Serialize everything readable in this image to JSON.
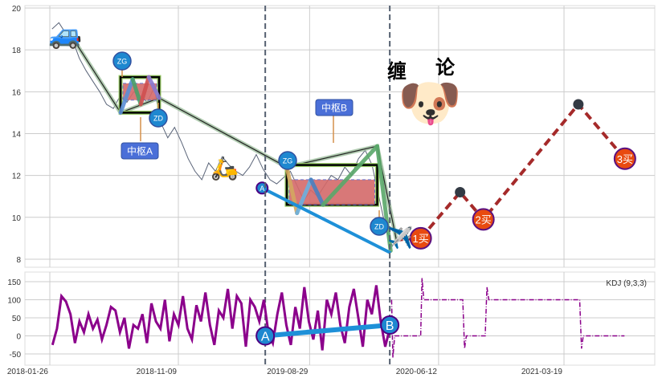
{
  "chart_data": [
    {
      "type": "line",
      "panel": "price",
      "ylim": [
        7.5,
        20.2
      ],
      "yticks": [
        "8",
        "10",
        "12",
        "14",
        "16",
        "18",
        "20"
      ],
      "grid": true,
      "price": {
        "start": "2018-01-31",
        "end": "2020-03-01",
        "values": [
          19.0,
          19.3,
          18.8,
          18.5,
          17.6,
          17.0,
          16.5,
          16.0,
          15.4,
          15.2,
          15.8,
          15.5,
          16.0,
          15.8,
          15.5,
          16.2,
          14.5,
          13.8,
          14.3,
          13.6,
          12.8,
          12.2,
          11.8,
          12.6,
          12.2,
          12.9,
          12.5,
          12.2,
          12.0,
          12.4,
          13.0,
          12.3,
          11.8,
          11.6,
          11.9,
          12.2,
          11.5,
          10.8,
          11.3,
          11.0,
          11.5,
          12.0,
          11.8,
          12.4,
          12.0,
          12.8,
          13.2,
          12.5,
          11.0,
          9.5,
          8.6
        ]
      },
      "trend_line": [
        [
          "2018-03-26",
          18.3
        ],
        [
          "2018-07-03",
          15.0
        ],
        [
          "2018-09-27",
          15.7
        ],
        [
          "2019-07-09",
          12.4
        ],
        [
          "2020-01-27",
          13.4
        ],
        [
          "2020-03-10",
          8.9
        ]
      ],
      "zhongshu_A": {
        "label": "中枢A",
        "start": "2018-07-03",
        "end": "2018-09-27",
        "low": 15.0,
        "high": 16.7,
        "band": [
          15.6,
          16.4
        ],
        "zigzag": [
          [
            "2018-07-03",
            15.0
          ],
          [
            "2018-07-30",
            16.6
          ],
          [
            "2018-08-17",
            15.4
          ],
          [
            "2018-09-04",
            16.7
          ],
          [
            "2018-09-27",
            15.7
          ]
        ],
        "zg_label": "ZG",
        "zd_label": "ZD"
      },
      "zhongshu_B": {
        "label": "中枢B",
        "start": "2019-07-09",
        "end": "2020-01-27",
        "low": 10.6,
        "high": 12.5,
        "band": [
          10.6,
          11.8
        ],
        "zigzag": [
          [
            "2019-07-09",
            12.4
          ],
          [
            "2019-08-01",
            10.2
          ],
          [
            "2019-09-01",
            11.8
          ],
          [
            "2019-09-28",
            10.6
          ],
          [
            "2020-01-27",
            13.4
          ],
          [
            "2020-02-26",
            8.4
          ]
        ],
        "zg_label": "ZG",
        "zd_label": "ZD"
      },
      "divergence_line": {
        "label": "A",
        "from": [
          "2019-05-15",
          11.4
        ],
        "to": [
          "2020-02-26",
          8.3
        ]
      },
      "forecast": {
        "points": [
          [
            "2020-05-03",
            9.0,
            "1买"
          ],
          [
            "2020-07-30",
            11.2,
            ""
          ],
          [
            "2020-09-20",
            9.9,
            "2买"
          ],
          [
            "2021-04-20",
            15.4,
            ""
          ],
          [
            "2021-08-02",
            12.8,
            "3买"
          ]
        ],
        "color": "#a52a2a"
      },
      "vlines": [
        "2019-05-22",
        "2020-02-24"
      ],
      "logo_text": [
        "缠",
        "论"
      ]
    },
    {
      "type": "line",
      "panel": "kdj",
      "legend": "KDJ (9,3,3)",
      "ylim": [
        -65,
        170
      ],
      "yticks": [
        "-50",
        "0",
        "50",
        "100",
        "150"
      ],
      "xticks": [
        [
          "2018-01-26",
          "2018-01-26"
        ],
        [
          "2018-11-09",
          "2018-11-09"
        ],
        [
          "2019-08-29",
          "2019-08-29"
        ],
        [
          "2020-06-12",
          "2020-06-12"
        ],
        [
          "2021-03-19",
          "2021-03-19"
        ]
      ],
      "kdj": {
        "start": "2018-02-01",
        "end": "2020-02-24",
        "color": "#8b008b",
        "values": [
          -25,
          20,
          110,
          95,
          60,
          -20,
          40,
          10,
          60,
          20,
          45,
          -10,
          30,
          80,
          70,
          10,
          50,
          -35,
          30,
          20,
          60,
          -20,
          90,
          40,
          20,
          100,
          -15,
          60,
          30,
          110,
          20,
          -10,
          85,
          40,
          120,
          30,
          -25,
          70,
          50,
          130,
          20,
          110,
          90,
          -30,
          100,
          80,
          40,
          100,
          10,
          -20,
          60,
          120,
          30,
          -25,
          80,
          20,
          135,
          40,
          -10,
          70,
          -40,
          100,
          60,
          120,
          30,
          -20,
          80,
          130,
          50,
          -30,
          100,
          60,
          140,
          40,
          -30,
          20
        ]
      },
      "kdj_forecast": [
        [
          "2020-02-28",
          100
        ],
        [
          "2020-03-02",
          -60
        ],
        [
          "2020-03-06",
          0
        ],
        [
          "2020-05-03",
          0
        ],
        [
          "2020-05-06",
          160
        ],
        [
          "2020-05-10",
          100
        ],
        [
          "2020-08-05",
          100
        ],
        [
          "2020-08-09",
          -35
        ],
        [
          "2020-08-13",
          0
        ],
        [
          "2020-09-24",
          0
        ],
        [
          "2020-09-28",
          135
        ],
        [
          "2020-10-02",
          100
        ],
        [
          "2021-04-23",
          100
        ],
        [
          "2021-04-27",
          -35
        ],
        [
          "2021-05-01",
          0
        ],
        [
          "2021-08-01",
          0
        ]
      ],
      "divergence": {
        "from": [
          "2019-05-22",
          0,
          "A"
        ],
        "to": [
          "2020-02-24",
          30,
          "B"
        ]
      }
    }
  ]
}
